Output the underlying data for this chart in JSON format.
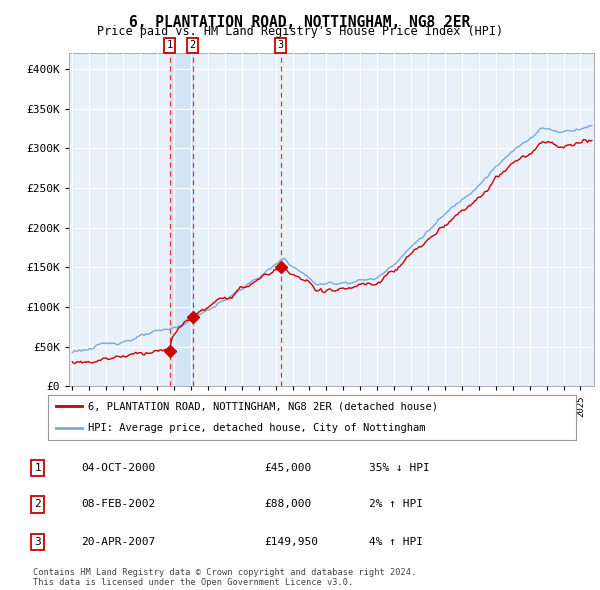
{
  "title": "6, PLANTATION ROAD, NOTTINGHAM, NG8 2ER",
  "subtitle": "Price paid vs. HM Land Registry's House Price Index (HPI)",
  "legend_line1": "6, PLANTATION ROAD, NOTTINGHAM, NG8 2ER (detached house)",
  "legend_line2": "HPI: Average price, detached house, City of Nottingham",
  "footer": "Contains HM Land Registry data © Crown copyright and database right 2024.\nThis data is licensed under the Open Government Licence v3.0.",
  "sales": [
    {
      "num": 1,
      "date_label": "04-OCT-2000",
      "price": 45000,
      "hpi_rel": "35% ↓ HPI",
      "x_year": 2000.75
    },
    {
      "num": 2,
      "date_label": "08-FEB-2002",
      "price": 88000,
      "hpi_rel": "2% ↑ HPI",
      "x_year": 2002.1
    },
    {
      "num": 3,
      "date_label": "20-APR-2007",
      "price": 149950,
      "hpi_rel": "4% ↑ HPI",
      "x_year": 2007.3
    }
  ],
  "sale_marker_color": "#cc0000",
  "red_line_color": "#cc0000",
  "blue_line_color": "#7aaadd",
  "plot_bg": "#e8f0fa",
  "grid_color": "#ffffff",
  "vline_color": "#ee3333",
  "vband_color": "#d0e4f8",
  "ylim": [
    0,
    420000
  ],
  "ytick_vals": [
    0,
    50000,
    100000,
    150000,
    200000,
    250000,
    300000,
    350000,
    400000
  ],
  "ytick_labels": [
    "£0",
    "£50K",
    "£100K",
    "£150K",
    "£200K",
    "£250K",
    "£300K",
    "£350K",
    "£400K"
  ],
  "xlim_start": 1994.8,
  "xlim_end": 2025.8
}
